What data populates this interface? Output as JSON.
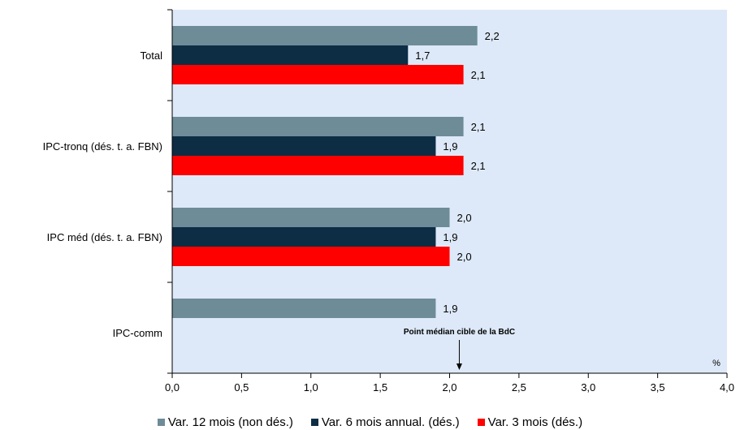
{
  "chart_data": {
    "type": "bar",
    "orientation": "horizontal",
    "categories": [
      "Total",
      "IPC-tronq (dés. t. a. FBN)",
      "IPC méd (dés. t. a. FBN)",
      "IPC-comm"
    ],
    "series": [
      {
        "name": "Var. 12 mois (non dés.)",
        "color": "#6E8B98",
        "values": [
          2.2,
          2.1,
          2.0,
          1.9
        ],
        "labels": [
          "2,2",
          "2,1",
          "2,0",
          "1,9"
        ]
      },
      {
        "name": "Var. 6 mois annual. (dés.)",
        "color": "#0D2D45",
        "values": [
          1.7,
          1.9,
          1.9,
          null
        ],
        "labels": [
          "1,7",
          "1,9",
          "1,9",
          ""
        ]
      },
      {
        "name": "Var. 3 mois (dés.)",
        "color": "#FF0000",
        "values": [
          2.1,
          2.1,
          2.0,
          null
        ],
        "labels": [
          "2,1",
          "2,1",
          "2,0",
          ""
        ]
      }
    ],
    "xlim": [
      0,
      4.0
    ],
    "xticks": [
      0,
      0.5,
      1.0,
      1.5,
      2.0,
      2.5,
      3.0,
      3.5,
      4.0
    ],
    "xtick_labels": [
      "0,0",
      "0,5",
      "1,0",
      "1,5",
      "2,0",
      "2,5",
      "3,0",
      "3,5",
      "4,0"
    ],
    "unit": "%",
    "annotation": {
      "text": "Point médian cible de la BdC",
      "x": 2.07
    },
    "plot_background": "#DDE9F8",
    "grid": false,
    "legend_position": "bottom"
  }
}
